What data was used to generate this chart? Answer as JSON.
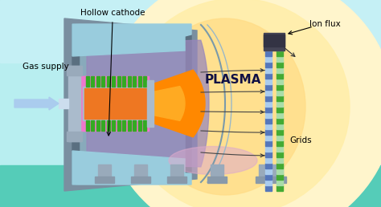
{
  "labels": {
    "hollow_cathode": "Hollow cathode",
    "gas_supply": "Gas supply",
    "plasma": "PLASMA",
    "ion_flux": "Ion flux",
    "grids": "Grids"
  },
  "colors": {
    "background_top": "#b8eef0",
    "background_bottom": "#55ccb8",
    "chamber_outer": "#7a8fa0",
    "chamber_mid": "#5a6f80",
    "chamber_inner": "#7a8899",
    "purple_interior": "#8877aa",
    "light_blue_shroud": "#88bbcc",
    "plasma_deep_orange": "#ff7700",
    "plasma_orange": "#ff9900",
    "plasma_light": "#ffcc55",
    "plasma_yellow": "#ffee99",
    "plasma_glow": "#fff5cc",
    "magnet_pink_outer": "#ee77cc",
    "magnet_pink_inner": "#ff99dd",
    "magnet_green": "#33aa22",
    "orange_plume": "#ff8800",
    "hot_spot": "#ffff88",
    "grid_blue_light": "#99bbee",
    "grid_blue_dark": "#5577bb",
    "grid_green_light": "#88cc55",
    "grid_green_dark": "#44aa33",
    "arrow_dark": "#222222",
    "gas_arrow": "#99bbdd",
    "bottom_teal": "#44bbaa",
    "purple_glow": "#ddaacc",
    "gray_light": "#aabbcc",
    "gray_plate": "#99aabb"
  }
}
